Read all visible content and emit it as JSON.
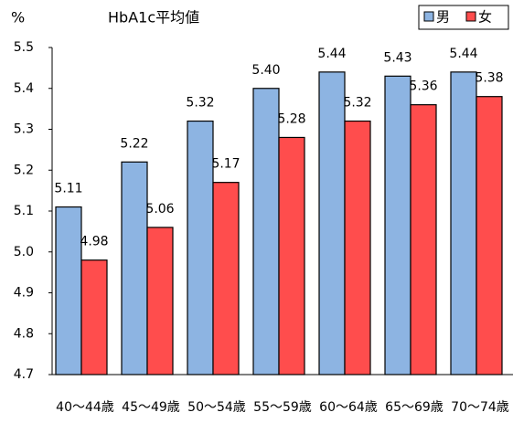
{
  "chart_data": {
    "type": "bar",
    "title": "HbA1c平均値",
    "y_label": "%",
    "categories": [
      "40～44歳",
      "45～49歳",
      "50～54歳",
      "55～59歳",
      "60～64歳",
      "65～69歳",
      "70～74歳"
    ],
    "series": [
      {
        "name": "男",
        "color": "#8db4e2",
        "values": [
          5.11,
          5.22,
          5.32,
          5.4,
          5.44,
          5.43,
          5.44
        ],
        "value_labels": [
          "5.11",
          "5.22",
          "5.32",
          "5.40",
          "5.44",
          "5.43",
          "5.44"
        ]
      },
      {
        "name": "女",
        "color": "#ff4d4d",
        "values": [
          4.98,
          5.06,
          5.17,
          5.28,
          5.32,
          5.36,
          5.38
        ],
        "value_labels": [
          "4.98",
          "5.06",
          "5.17",
          "5.28",
          "5.32",
          "5.36",
          "5.38"
        ]
      }
    ],
    "ylim": [
      4.7,
      5.5
    ],
    "yticks": [
      4.7,
      4.8,
      4.9,
      {
        "value": 5,
        "label": "5.0"
      },
      5.1,
      5.2,
      5.3,
      5.4,
      5.5
    ],
    "grid": false,
    "legend": "top-right"
  }
}
